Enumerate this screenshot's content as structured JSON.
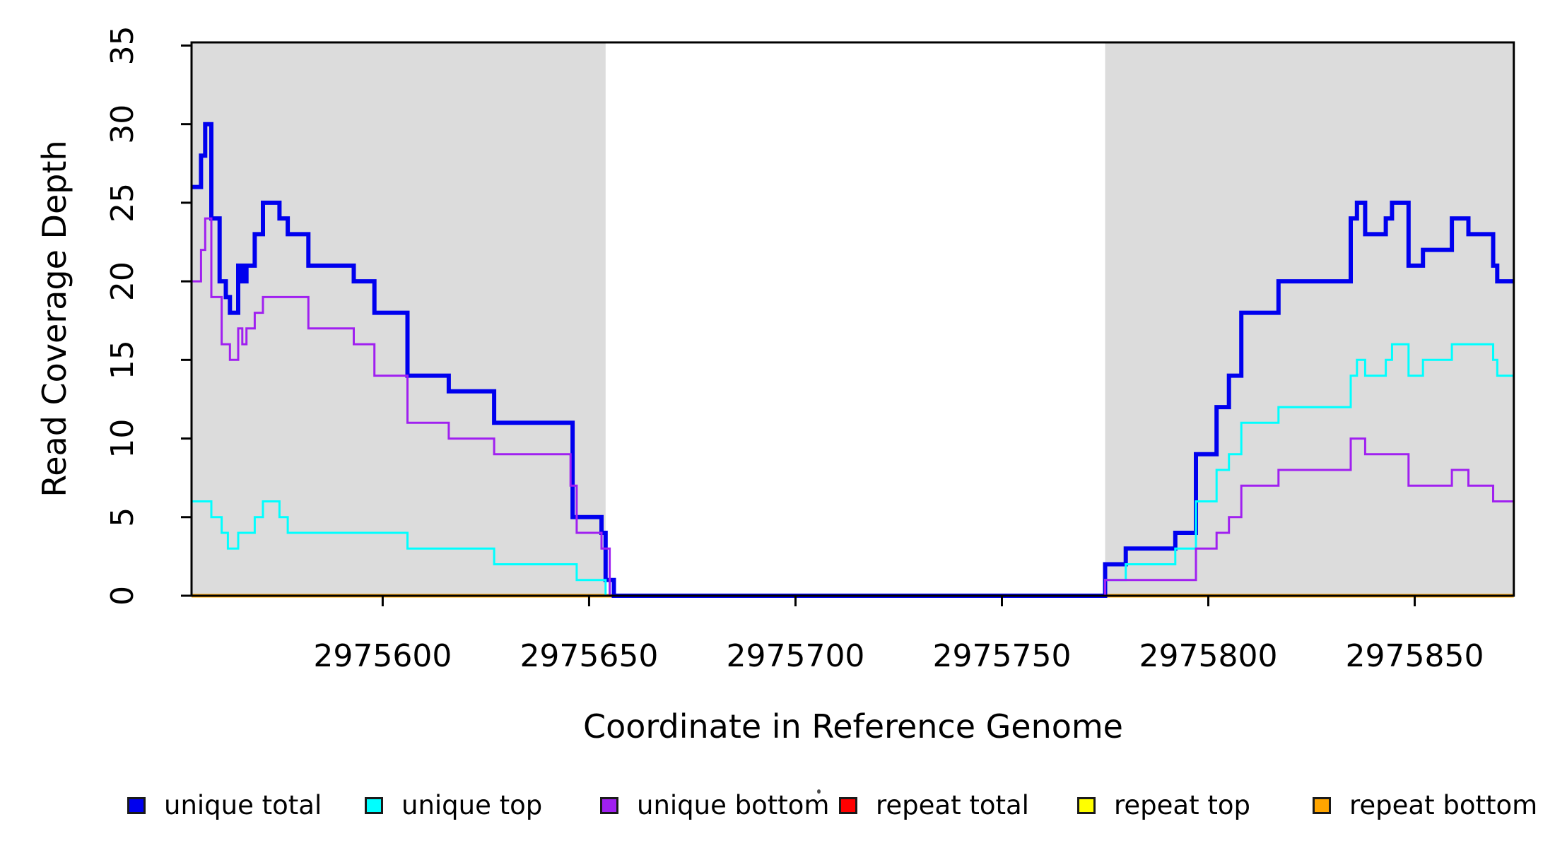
{
  "chart_data": {
    "type": "line",
    "subtype": "step-coverage-plot",
    "title": "",
    "xlabel": "Coordinate in Reference Genome",
    "ylabel": "Read Coverage Depth",
    "xlim": [
      2975553.7,
      2975874
    ],
    "ylim": [
      0,
      35.2
    ],
    "x_ticks": [
      2975600,
      2975650,
      2975700,
      2975750,
      2975800,
      2975850
    ],
    "y_ticks": [
      0,
      5,
      10,
      15,
      20,
      25,
      30,
      35
    ],
    "grid": "off",
    "legend_position": "bottom",
    "plot_bg": "#ffffff",
    "shaded_region_color": "#dcdcdc",
    "shaded_regions": [
      {
        "name": "left-mapped-region",
        "x0": 2975553.7,
        "x1": 2975654
      },
      {
        "name": "right-mapped-region",
        "x0": 2975775,
        "x1": 2975874
      }
    ],
    "series": [
      {
        "name": "unique total",
        "color": "#0000ee",
        "width": 6,
        "points": [
          [
            2975553.7,
            26
          ],
          [
            2975556,
            28
          ],
          [
            2975557,
            30
          ],
          [
            2975558.5,
            24
          ],
          [
            2975560.5,
            20
          ],
          [
            2975562,
            19
          ],
          [
            2975563,
            18
          ],
          [
            2975565,
            21
          ],
          [
            2975566,
            20
          ],
          [
            2975567,
            21
          ],
          [
            2975569,
            23
          ],
          [
            2975571,
            25
          ],
          [
            2975575,
            24
          ],
          [
            2975577,
            23
          ],
          [
            2975582,
            21
          ],
          [
            2975593,
            20
          ],
          [
            2975598,
            18
          ],
          [
            2975606,
            14
          ],
          [
            2975616,
            13
          ],
          [
            2975627,
            11
          ],
          [
            2975646,
            5
          ],
          [
            2975653,
            4
          ],
          [
            2975654,
            1
          ],
          [
            2975656,
            0
          ],
          [
            2975775,
            2
          ],
          [
            2975780,
            3
          ],
          [
            2975792,
            4
          ],
          [
            2975797,
            9
          ],
          [
            2975802,
            12
          ],
          [
            2975805,
            14
          ],
          [
            2975808,
            18
          ],
          [
            2975817,
            20
          ],
          [
            2975834.5,
            24
          ],
          [
            2975836,
            25
          ],
          [
            2975838,
            23
          ],
          [
            2975843,
            24
          ],
          [
            2975844.5,
            25
          ],
          [
            2975848.5,
            21
          ],
          [
            2975852,
            22
          ],
          [
            2975859,
            24
          ],
          [
            2975863,
            23
          ],
          [
            2975869,
            21
          ],
          [
            2975870,
            20
          ]
        ]
      },
      {
        "name": "unique top",
        "color": "#00ffff",
        "width": 3,
        "points": [
          [
            2975553.7,
            6
          ],
          [
            2975558.5,
            5
          ],
          [
            2975561,
            4
          ],
          [
            2975562.5,
            3
          ],
          [
            2975565,
            4
          ],
          [
            2975569,
            5
          ],
          [
            2975571,
            6
          ],
          [
            2975575,
            5
          ],
          [
            2975577,
            4
          ],
          [
            2975606,
            3
          ],
          [
            2975627,
            2
          ],
          [
            2975647,
            1
          ],
          [
            2975654,
            0
          ],
          [
            2975775,
            1
          ],
          [
            2975780,
            2
          ],
          [
            2975792,
            3
          ],
          [
            2975797,
            6
          ],
          [
            2975802,
            8
          ],
          [
            2975805,
            9
          ],
          [
            2975808,
            11
          ],
          [
            2975817,
            12
          ],
          [
            2975834.5,
            14
          ],
          [
            2975836,
            15
          ],
          [
            2975838,
            14
          ],
          [
            2975843,
            15
          ],
          [
            2975844.5,
            16
          ],
          [
            2975848.5,
            14
          ],
          [
            2975852,
            15
          ],
          [
            2975859,
            16
          ],
          [
            2975869,
            15
          ],
          [
            2975870,
            14
          ]
        ]
      },
      {
        "name": "unique bottom",
        "color": "#a020f0",
        "width": 3,
        "points": [
          [
            2975553.7,
            20
          ],
          [
            2975556,
            22
          ],
          [
            2975557,
            24
          ],
          [
            2975558.5,
            19
          ],
          [
            2975561,
            16
          ],
          [
            2975563,
            15
          ],
          [
            2975565,
            17
          ],
          [
            2975566,
            16
          ],
          [
            2975567,
            17
          ],
          [
            2975569,
            18
          ],
          [
            2975571,
            19
          ],
          [
            2975582,
            17
          ],
          [
            2975593,
            16
          ],
          [
            2975598,
            14
          ],
          [
            2975606,
            11
          ],
          [
            2975616,
            10
          ],
          [
            2975627,
            9
          ],
          [
            2975645.5,
            7
          ],
          [
            2975647,
            4
          ],
          [
            2975653,
            3
          ],
          [
            2975655,
            0
          ],
          [
            2975775,
            1
          ],
          [
            2975797,
            3
          ],
          [
            2975802,
            4
          ],
          [
            2975805,
            5
          ],
          [
            2975808,
            7
          ],
          [
            2975817,
            8
          ],
          [
            2975834.5,
            10
          ],
          [
            2975838,
            9
          ],
          [
            2975848.5,
            7
          ],
          [
            2975859,
            8
          ],
          [
            2975863,
            7
          ],
          [
            2975869,
            6
          ]
        ]
      },
      {
        "name": "repeat total",
        "color": "#ff0000",
        "width": 3,
        "points": [
          [
            2975553.7,
            0
          ]
        ]
      },
      {
        "name": "repeat top",
        "color": "#ffff00",
        "width": 3,
        "points": [
          [
            2975553.7,
            0
          ]
        ]
      },
      {
        "name": "repeat bottom",
        "color": "#ffa500",
        "width": 5,
        "points": [
          [
            2975553.7,
            0
          ]
        ]
      }
    ],
    "draw_order": [
      4,
      3,
      5,
      0,
      1,
      2
    ],
    "legend": [
      {
        "label": "unique total",
        "color": "#0000ee"
      },
      {
        "label": "unique top",
        "color": "#00ffff"
      },
      {
        "label": "unique bottom",
        "color": "#a020f0"
      },
      {
        "label": "repeat total",
        "color": "#ff0000"
      },
      {
        "label": "repeat top",
        "color": "#ffff00"
      },
      {
        "label": "repeat bottom",
        "color": "#ffa500"
      }
    ]
  }
}
